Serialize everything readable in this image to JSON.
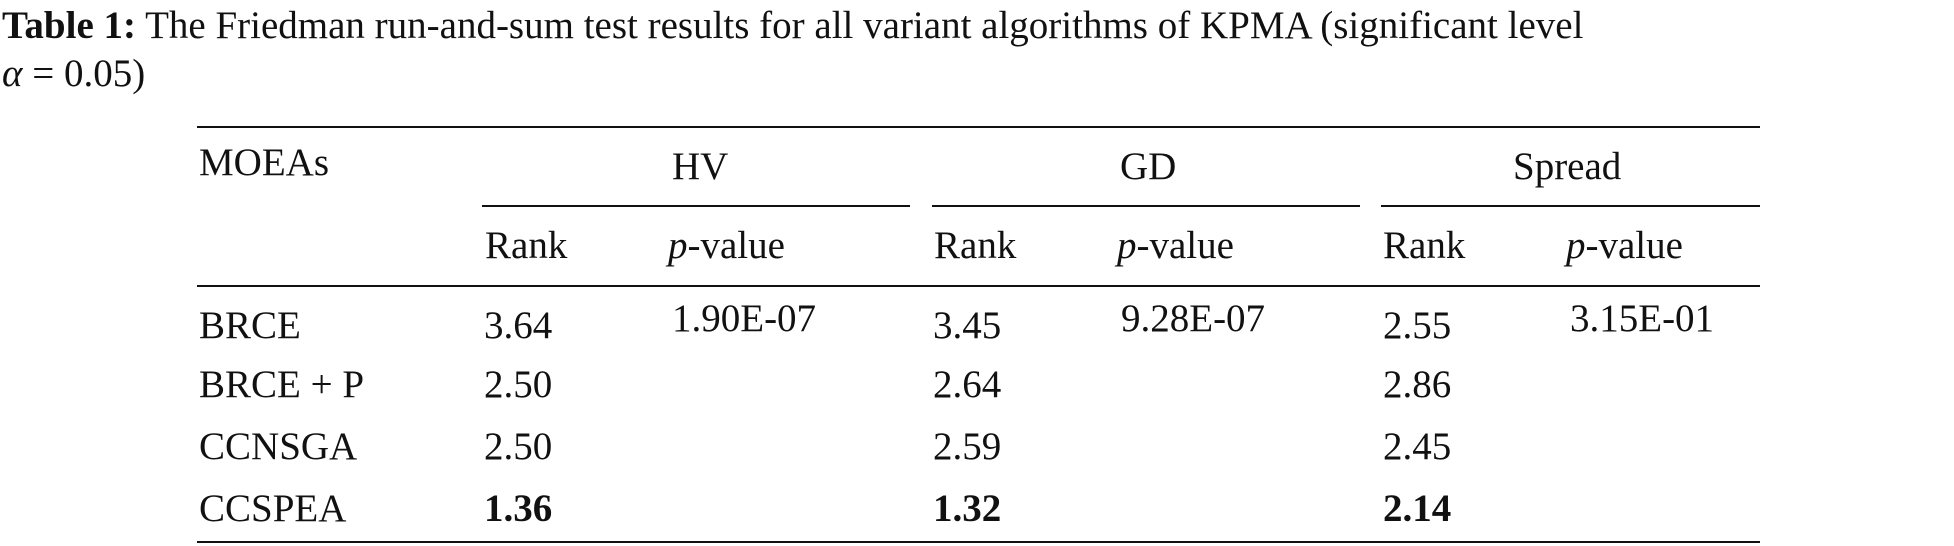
{
  "caption": {
    "label": "Table 1:",
    "text": "The Friedman run-and-sum test results for all variant algorithms of KPMA (significant level",
    "line2_symbol": "α",
    "line2_text": "= 0.05)"
  },
  "table": {
    "row_header": "MOEAs",
    "groups": [
      "HV",
      "GD",
      "Spread"
    ],
    "sub_rank": "Rank",
    "sub_pvalue_p": "p",
    "sub_pvalue_rest": "-value",
    "rows": [
      {
        "name": "BRCE",
        "hv_rank": "3.64",
        "hv_p": "1.90E-07",
        "gd_rank": "3.45",
        "gd_p": "9.28E-07",
        "sp_rank": "2.55",
        "sp_p": "3.15E-01"
      },
      {
        "name": "BRCE + P",
        "hv_rank": "2.50",
        "hv_p": "",
        "gd_rank": "2.64",
        "gd_p": "",
        "sp_rank": "2.86",
        "sp_p": ""
      },
      {
        "name": "CCNSGA",
        "hv_rank": "2.50",
        "hv_p": "",
        "gd_rank": "2.59",
        "gd_p": "",
        "sp_rank": "2.45",
        "sp_p": ""
      },
      {
        "name": "CCSPEA",
        "hv_rank": "1.36",
        "hv_p": "",
        "gd_rank": "1.32",
        "gd_p": "",
        "sp_rank": "2.14",
        "sp_p": ""
      }
    ],
    "bold_row_index": 3
  }
}
